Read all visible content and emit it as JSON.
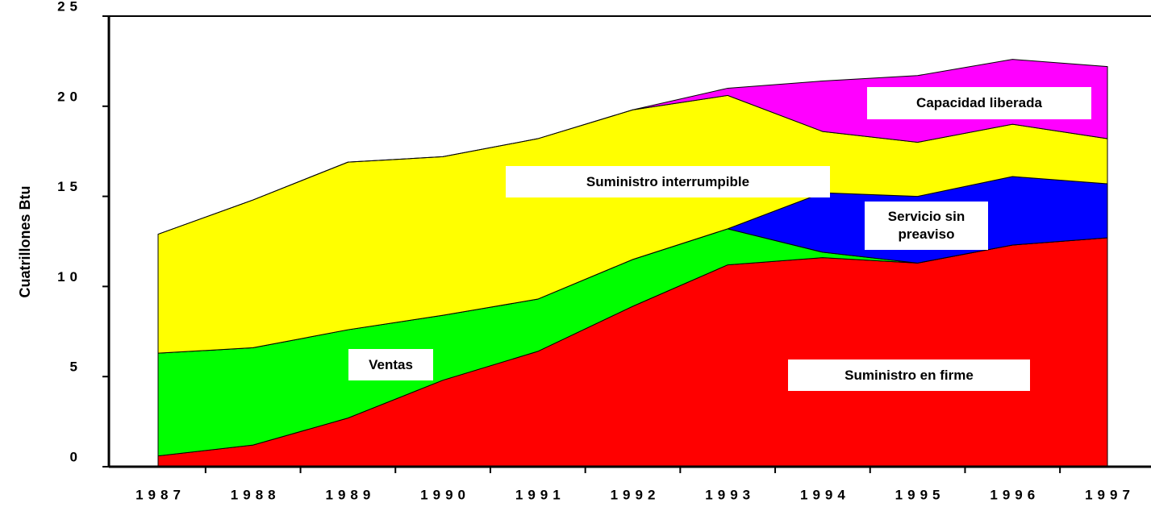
{
  "chart_data": {
    "type": "stacked_area",
    "y_label": "Cuatrillones Btu",
    "categories": [
      "1987",
      "1988",
      "1989",
      "1990",
      "1991",
      "1992",
      "1993",
      "1994",
      "1995",
      "1996",
      "1997"
    ],
    "ylim": [
      0,
      25
    ],
    "yticks": [
      0,
      5,
      10,
      15,
      20,
      25
    ],
    "series": [
      {
        "name": "Suministro en firme",
        "color": "#ff0000",
        "values": [
          0.6,
          1.2,
          2.7,
          4.8,
          6.4,
          8.9,
          11.2,
          11.6,
          11.3,
          12.3,
          12.7
        ]
      },
      {
        "name": "Ventas",
        "color": "#00ff00",
        "values": [
          5.7,
          5.4,
          4.9,
          3.6,
          2.9,
          2.6,
          2.0,
          0.3,
          0,
          0,
          0
        ]
      },
      {
        "name": "Servicio sin preaviso",
        "color": "#0000ff",
        "values": [
          0,
          0,
          0,
          0,
          0,
          0,
          0,
          3.3,
          3.7,
          3.8,
          3.0
        ]
      },
      {
        "name": "Suministro interrumpible",
        "color": "#ffff00",
        "values": [
          6.6,
          8.2,
          9.3,
          8.8,
          8.9,
          8.3,
          7.4,
          3.4,
          3.0,
          2.9,
          2.5
        ]
      },
      {
        "name": "Capacidad liberada",
        "color": "#ff00ff",
        "values": [
          0,
          0,
          0,
          0,
          0,
          0,
          0.4,
          2.8,
          3.7,
          3.6,
          4.0
        ]
      }
    ]
  }
}
